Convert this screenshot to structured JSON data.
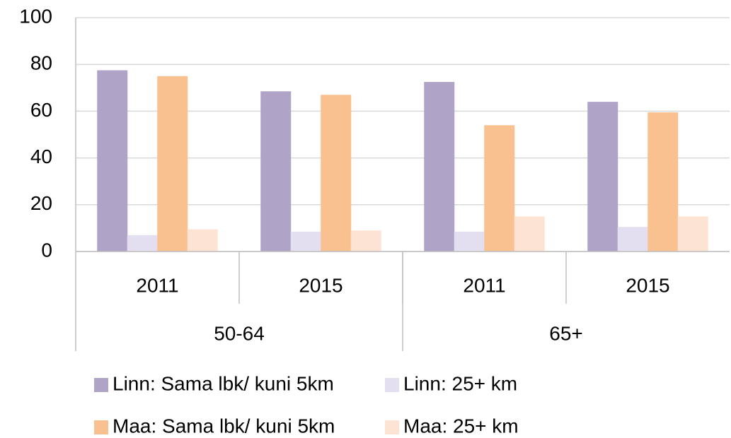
{
  "chart_data": {
    "type": "bar",
    "categories": [
      "2011",
      "2015",
      "2011",
      "2015"
    ],
    "groups": [
      {
        "label": "50-64",
        "span": 2
      },
      {
        "label": "65+",
        "span": 2
      }
    ],
    "series": [
      {
        "name": "Linn: Sama lbk/ kuni 5km",
        "color": "#b0a3c8",
        "values": [
          77.5,
          68.5,
          72.5,
          64
        ]
      },
      {
        "name": "Linn: 25+ km",
        "color": "#e4dff0",
        "values": [
          7,
          8.5,
          8.5,
          10.5
        ]
      },
      {
        "name": "Maa: Sama lbk/ kuni 5km",
        "color": "#f9c090",
        "values": [
          75,
          67,
          54,
          59.5
        ]
      },
      {
        "name": "Maa: 25+ km",
        "color": "#fde3d3",
        "values": [
          9.5,
          9,
          15,
          15
        ]
      }
    ],
    "ylim": [
      0,
      100
    ],
    "yticks": [
      0,
      20,
      40,
      60,
      80,
      100
    ],
    "grid": true
  }
}
